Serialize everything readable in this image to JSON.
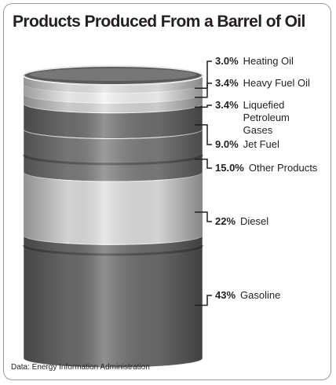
{
  "chart_data": {
    "type": "barrel",
    "title": "Products Produced From a Barrel of Oil",
    "source": "Data: Energy Information Administration",
    "categories": [
      "Heating Oil",
      "Heavy Fuel Oil",
      "Liquefied Petroleum Gases",
      "Jet Fuel",
      "Other Products",
      "Diesel",
      "Gasoline"
    ],
    "values": [
      3.0,
      3.4,
      3.4,
      9.0,
      15.0,
      22,
      43
    ],
    "value_labels": [
      "3.0%",
      "3.4%",
      "3.4%",
      "9.0%",
      "15.0%",
      "22%",
      "43%"
    ],
    "colors": [
      "#e2e2e2",
      "#f2f2f2",
      "#d6d6d6",
      "#707070",
      "#7c7c7c",
      "#dedede",
      "#6c6c6c"
    ]
  }
}
